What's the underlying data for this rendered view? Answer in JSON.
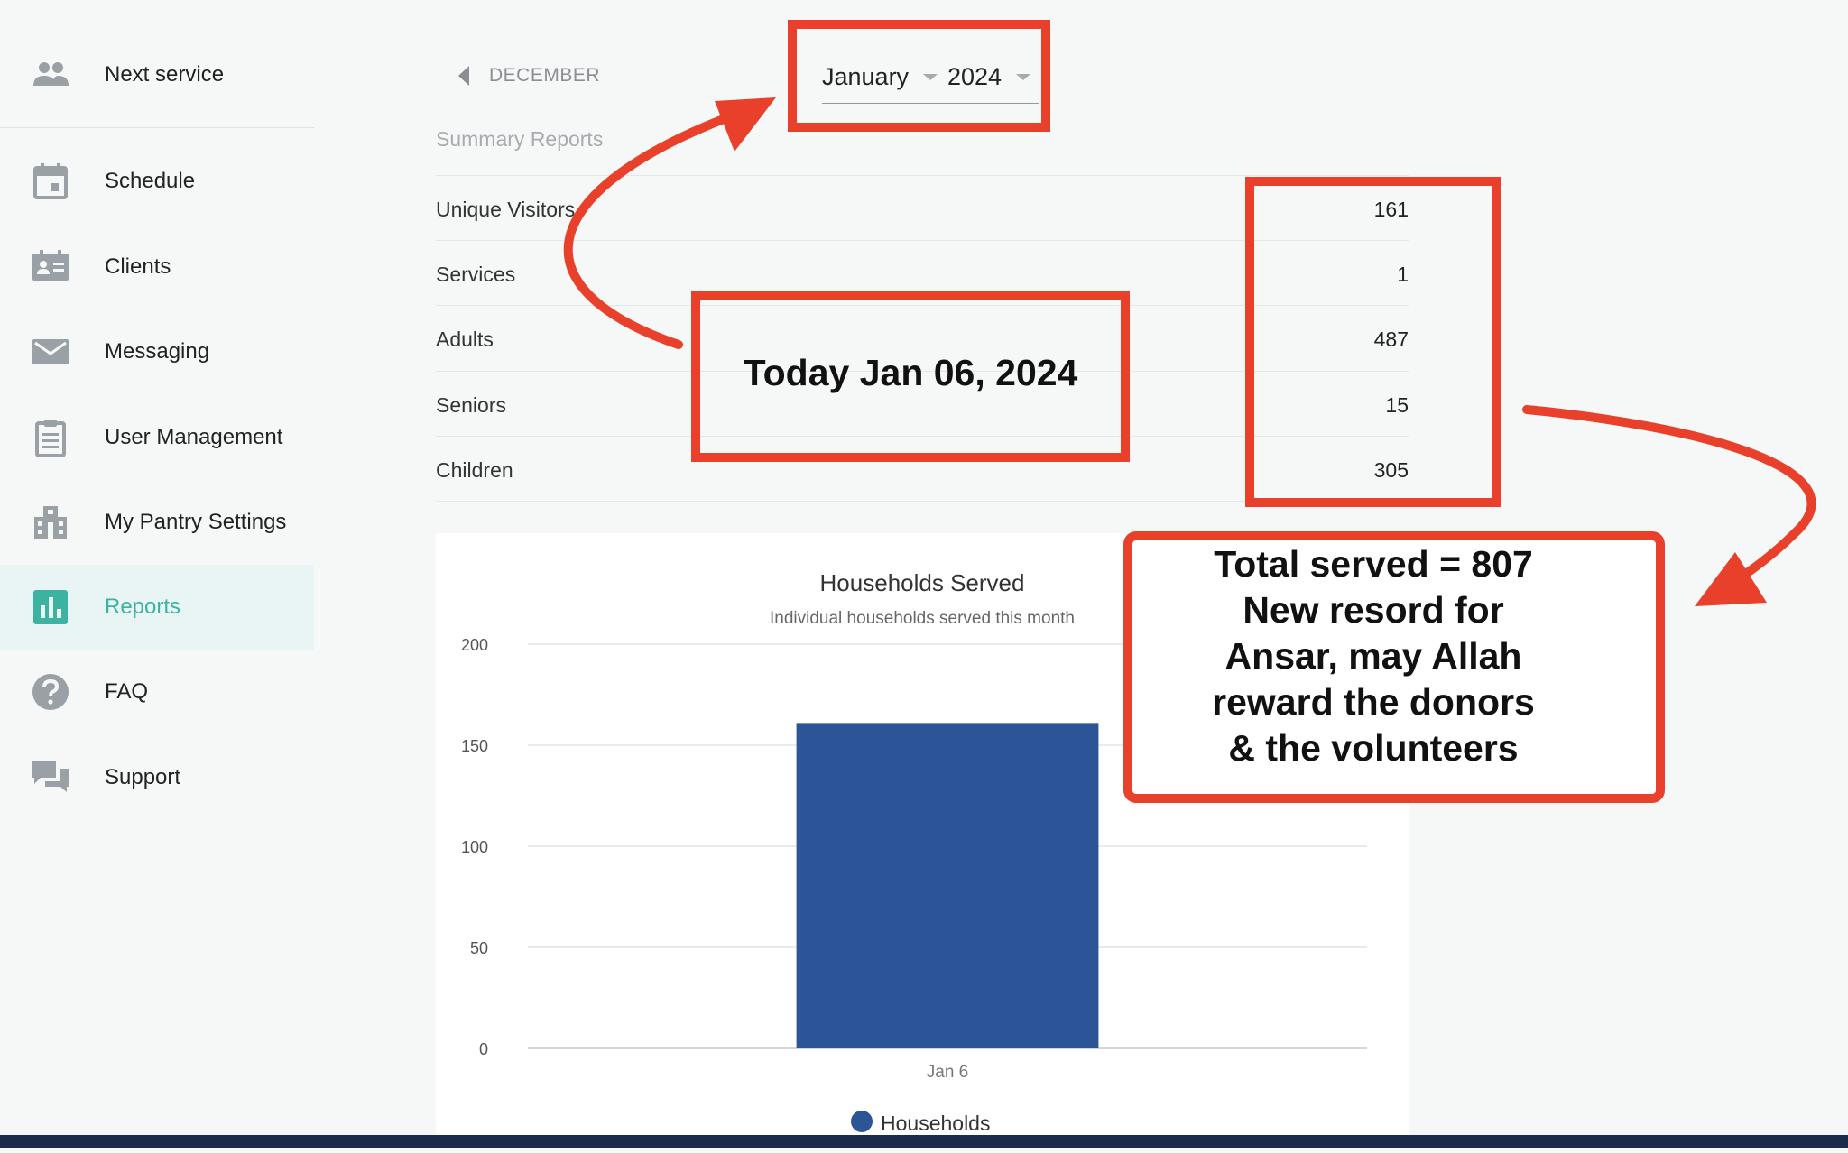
{
  "sidebar": {
    "items": [
      {
        "label": "Next service",
        "icon": "people-icon"
      },
      {
        "label": "Schedule",
        "icon": "calendar-icon"
      },
      {
        "label": "Clients",
        "icon": "id-card-icon"
      },
      {
        "label": "Messaging",
        "icon": "envelope-icon"
      },
      {
        "label": "User Management",
        "icon": "clipboard-icon"
      },
      {
        "label": "My Pantry Settings",
        "icon": "building-icon"
      },
      {
        "label": "Reports",
        "icon": "bar-chart-icon",
        "active": true
      },
      {
        "label": "FAQ",
        "icon": "help-icon"
      },
      {
        "label": "Support",
        "icon": "chat-icon"
      }
    ]
  },
  "header": {
    "prev_month": "DECEMBER",
    "month": "January",
    "year": "2024"
  },
  "summary": {
    "title": "Summary Reports",
    "rows": [
      {
        "label": "Unique Visitors",
        "value": "161"
      },
      {
        "label": "Services",
        "value": "1"
      },
      {
        "label": "Adults",
        "value": "487"
      },
      {
        "label": "Seniors",
        "value": "15"
      },
      {
        "label": "Children",
        "value": "305"
      }
    ]
  },
  "chart_data": {
    "type": "bar",
    "title": "Households Served",
    "subtitle": "Individual households served this month",
    "categories": [
      "Jan 6"
    ],
    "series": [
      {
        "name": "Households",
        "values": [
          161
        ],
        "color": "#2b5597"
      }
    ],
    "yticks": [
      0,
      50,
      100,
      150,
      200
    ],
    "ylim": [
      0,
      200
    ],
    "grid": true,
    "legend": "bottom"
  },
  "annotations": {
    "today": "Today Jan 06, 2024",
    "total_lines": [
      "Total served = 807",
      "New resord for",
      "Ansar, may Allah",
      "reward the donors",
      "& the volunteers"
    ],
    "color": "#e8402a"
  }
}
